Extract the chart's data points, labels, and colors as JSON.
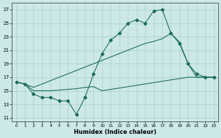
{
  "xlabel": "Humidex (Indice chaleur)",
  "bg_color": "#cce8e8",
  "line_color": "#1a6b5a",
  "xlim": [
    -0.5,
    23.5
  ],
  "ylim": [
    10.5,
    28.0
  ],
  "yticks": [
    11,
    13,
    15,
    17,
    19,
    21,
    23,
    25,
    27
  ],
  "xticks": [
    0,
    1,
    2,
    3,
    4,
    5,
    6,
    7,
    8,
    9,
    10,
    11,
    12,
    13,
    14,
    15,
    16,
    17,
    18,
    19,
    20,
    21,
    22,
    23
  ],
  "line1_x": [
    0,
    1,
    2,
    3,
    4,
    5,
    6,
    7,
    8,
    9,
    10,
    11,
    12,
    13,
    14,
    15,
    16,
    17,
    18,
    19,
    20,
    21,
    22,
    23
  ],
  "line1_y": [
    16.3,
    16.0,
    14.5,
    14.0,
    14.0,
    13.5,
    13.5,
    11.5,
    14.0,
    17.5,
    20.5,
    22.5,
    23.5,
    25.0,
    25.5,
    25.0,
    26.8,
    27.0,
    23.5,
    22.0,
    19.0,
    17.5,
    17.0,
    17.0
  ],
  "line2_x": [
    0,
    1,
    2,
    3,
    4,
    5,
    6,
    7,
    8,
    9,
    10,
    11,
    12,
    13,
    14,
    15,
    16,
    17,
    18,
    19,
    20,
    21,
    22,
    23
  ],
  "line2_y": [
    16.3,
    16.0,
    15.5,
    16.0,
    16.5,
    17.0,
    17.5,
    18.0,
    18.5,
    19.0,
    19.5,
    20.0,
    20.5,
    21.0,
    21.5,
    22.0,
    22.3,
    22.7,
    23.5,
    22.2,
    19.0,
    17.0,
    17.0,
    17.0
  ],
  "line3_x": [
    0,
    1,
    2,
    3,
    4,
    5,
    6,
    7,
    8,
    9,
    10,
    11,
    12,
    13,
    14,
    15,
    16,
    17,
    18,
    19,
    20,
    21,
    22,
    23
  ],
  "line3_y": [
    16.3,
    16.0,
    15.0,
    15.0,
    15.0,
    15.1,
    15.2,
    15.3,
    15.5,
    15.6,
    15.0,
    15.2,
    15.4,
    15.6,
    15.8,
    16.0,
    16.2,
    16.4,
    16.6,
    16.8,
    17.0,
    17.0,
    17.0,
    17.0
  ]
}
